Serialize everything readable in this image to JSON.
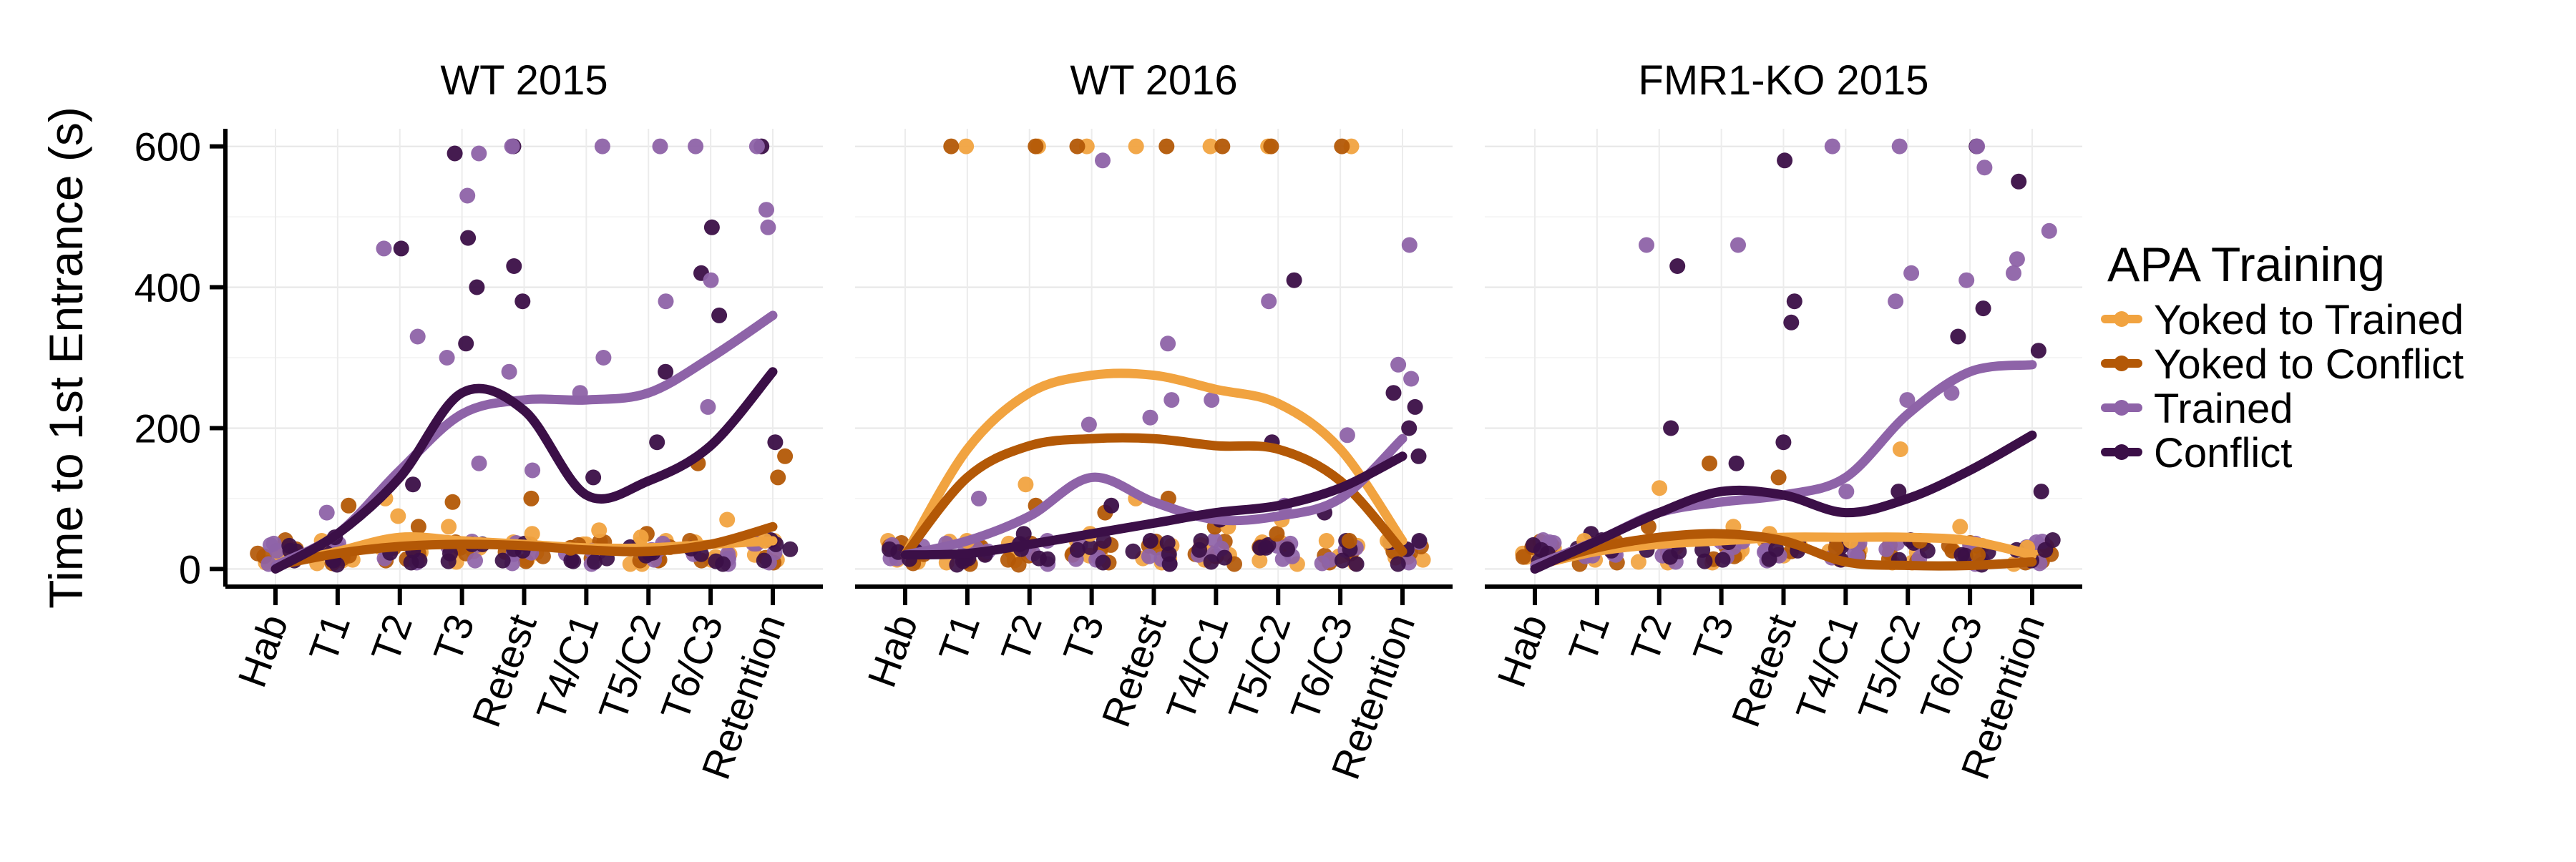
{
  "chart_data": {
    "type": "scatter",
    "ylabel": "Time to 1st Entrance (s)",
    "xlabel": "",
    "ylim": [
      -25,
      625
    ],
    "yticks": [
      0,
      200,
      400,
      600
    ],
    "categories": [
      "Hab",
      "T1",
      "T2",
      "T3",
      "Retest",
      "T4/C1",
      "T5/C2",
      "T6/C3",
      "Retention"
    ],
    "grid": true,
    "legend": {
      "title": "APA Training",
      "position": "right",
      "entries": [
        {
          "name": "Yoked to Trained",
          "color": "#f1a340"
        },
        {
          "name": "Yoked to Conflict",
          "color": "#b35806"
        },
        {
          "name": "Trained",
          "color": "#8e63a8"
        },
        {
          "name": "Conflict",
          "color": "#3b0f47"
        }
      ]
    },
    "facets": [
      {
        "title": "WT 2015",
        "series": [
          {
            "name": "Yoked to Trained",
            "trend": [
              5,
              25,
              45,
              40,
              35,
              30,
              30,
              35,
              40
            ]
          },
          {
            "name": "Yoked to Conflict",
            "trend": [
              5,
              22,
              32,
              35,
              33,
              27,
              25,
              35,
              60
            ]
          },
          {
            "name": "Trained",
            "trend": [
              5,
              50,
              140,
              220,
              240,
              240,
              250,
              300,
              360
            ]
          },
          {
            "name": "Conflict",
            "trend": [
              0,
              50,
              130,
              250,
              225,
              105,
              125,
              175,
              280
            ]
          }
        ],
        "points": [
          {
            "s": 3,
            "x": 3,
            "y": 590
          },
          {
            "s": 3,
            "x": 3,
            "y": 470
          },
          {
            "s": 3,
            "x": 3,
            "y": 400
          },
          {
            "s": 3,
            "x": 3,
            "y": 320
          },
          {
            "s": 3,
            "x": 4,
            "y": 600
          },
          {
            "s": 3,
            "x": 4,
            "y": 430
          },
          {
            "s": 3,
            "x": 4,
            "y": 380
          },
          {
            "s": 3,
            "x": 7,
            "y": 485
          },
          {
            "s": 3,
            "x": 7,
            "y": 420
          },
          {
            "s": 3,
            "x": 7,
            "y": 360
          },
          {
            "s": 3,
            "x": 8,
            "y": 600
          },
          {
            "s": 3,
            "x": 8,
            "y": 180
          },
          {
            "s": 3,
            "x": 6,
            "y": 280
          },
          {
            "s": 3,
            "x": 6,
            "y": 180
          },
          {
            "s": 3,
            "x": 2,
            "y": 455
          },
          {
            "s": 3,
            "x": 1,
            "y": 45
          },
          {
            "s": 3,
            "x": 2,
            "y": 120
          },
          {
            "s": 3,
            "x": 5,
            "y": 130
          },
          {
            "s": 2,
            "x": 2,
            "y": 455
          },
          {
            "s": 2,
            "x": 2,
            "y": 330
          },
          {
            "s": 2,
            "x": 3,
            "y": 590
          },
          {
            "s": 2,
            "x": 3,
            "y": 530
          },
          {
            "s": 2,
            "x": 3,
            "y": 300
          },
          {
            "s": 2,
            "x": 4,
            "y": 600
          },
          {
            "s": 2,
            "x": 4,
            "y": 280
          },
          {
            "s": 2,
            "x": 4,
            "y": 140
          },
          {
            "s": 2,
            "x": 5,
            "y": 600
          },
          {
            "s": 2,
            "x": 5,
            "y": 300
          },
          {
            "s": 2,
            "x": 5,
            "y": 250
          },
          {
            "s": 2,
            "x": 6,
            "y": 600
          },
          {
            "s": 2,
            "x": 6,
            "y": 380
          },
          {
            "s": 2,
            "x": 7,
            "y": 600
          },
          {
            "s": 2,
            "x": 7,
            "y": 410
          },
          {
            "s": 2,
            "x": 7,
            "y": 230
          },
          {
            "s": 2,
            "x": 8,
            "y": 600
          },
          {
            "s": 2,
            "x": 8,
            "y": 510
          },
          {
            "s": 2,
            "x": 8,
            "y": 485
          },
          {
            "s": 2,
            "x": 1,
            "y": 80
          },
          {
            "s": 2,
            "x": 3,
            "y": 150
          },
          {
            "s": 1,
            "x": 1,
            "y": 90
          },
          {
            "s": 1,
            "x": 2,
            "y": 60
          },
          {
            "s": 1,
            "x": 3,
            "y": 95
          },
          {
            "s": 1,
            "x": 4,
            "y": 100
          },
          {
            "s": 1,
            "x": 6,
            "y": 50
          },
          {
            "s": 1,
            "x": 7,
            "y": 150
          },
          {
            "s": 1,
            "x": 8,
            "y": 160
          },
          {
            "s": 1,
            "x": 8,
            "y": 130
          },
          {
            "s": 1,
            "x": 5,
            "y": 30
          },
          {
            "s": 0,
            "x": 2,
            "y": 100
          },
          {
            "s": 0,
            "x": 2,
            "y": 75
          },
          {
            "s": 0,
            "x": 1,
            "y": 40
          },
          {
            "s": 0,
            "x": 4,
            "y": 50
          },
          {
            "s": 0,
            "x": 5,
            "y": 55
          },
          {
            "s": 0,
            "x": 6,
            "y": 45
          },
          {
            "s": 0,
            "x": 7,
            "y": 70
          },
          {
            "s": 0,
            "x": 8,
            "y": 40
          },
          {
            "s": 0,
            "x": 3,
            "y": 60
          }
        ]
      },
      {
        "title": "WT 2016",
        "series": [
          {
            "name": "Yoked to Trained",
            "trend": [
              20,
              170,
              250,
              275,
              275,
              255,
              235,
              170,
              40
            ]
          },
          {
            "name": "Yoked to Conflict",
            "trend": [
              20,
              130,
              175,
              185,
              185,
              175,
              170,
              125,
              25
            ]
          },
          {
            "name": "Trained",
            "trend": [
              20,
              40,
              75,
              130,
              95,
              70,
              75,
              100,
              185
            ]
          },
          {
            "name": "Conflict",
            "trend": [
              20,
              22,
              35,
              50,
              65,
              80,
              90,
              115,
              160
            ]
          }
        ],
        "points": [
          {
            "s": 0,
            "x": 1,
            "y": 600
          },
          {
            "s": 0,
            "x": 2,
            "y": 600
          },
          {
            "s": 0,
            "x": 3,
            "y": 600
          },
          {
            "s": 0,
            "x": 4,
            "y": 600
          },
          {
            "s": 0,
            "x": 5,
            "y": 600
          },
          {
            "s": 0,
            "x": 6,
            "y": 600
          },
          {
            "s": 0,
            "x": 7,
            "y": 600
          },
          {
            "s": 1,
            "x": 1,
            "y": 600
          },
          {
            "s": 1,
            "x": 2,
            "y": 600
          },
          {
            "s": 1,
            "x": 3,
            "y": 600
          },
          {
            "s": 1,
            "x": 4,
            "y": 600
          },
          {
            "s": 1,
            "x": 5,
            "y": 600
          },
          {
            "s": 1,
            "x": 6,
            "y": 600
          },
          {
            "s": 1,
            "x": 7,
            "y": 600
          },
          {
            "s": 1,
            "x": 2,
            "y": 90
          },
          {
            "s": 1,
            "x": 3,
            "y": 80
          },
          {
            "s": 1,
            "x": 4,
            "y": 100
          },
          {
            "s": 1,
            "x": 5,
            "y": 60
          },
          {
            "s": 1,
            "x": 6,
            "y": 50
          },
          {
            "s": 1,
            "x": 7,
            "y": 40
          },
          {
            "s": 0,
            "x": 1,
            "y": 40
          },
          {
            "s": 0,
            "x": 2,
            "y": 120
          },
          {
            "s": 0,
            "x": 3,
            "y": 50
          },
          {
            "s": 0,
            "x": 4,
            "y": 100
          },
          {
            "s": 0,
            "x": 5,
            "y": 60
          },
          {
            "s": 0,
            "x": 6,
            "y": 70
          },
          {
            "s": 0,
            "x": 7,
            "y": 40
          },
          {
            "s": 0,
            "x": 8,
            "y": 40
          },
          {
            "s": 2,
            "x": 3,
            "y": 580
          },
          {
            "s": 2,
            "x": 4,
            "y": 320
          },
          {
            "s": 2,
            "x": 4,
            "y": 240
          },
          {
            "s": 2,
            "x": 4,
            "y": 215
          },
          {
            "s": 2,
            "x": 3,
            "y": 205
          },
          {
            "s": 2,
            "x": 5,
            "y": 240
          },
          {
            "s": 2,
            "x": 6,
            "y": 380
          },
          {
            "s": 2,
            "x": 7,
            "y": 190
          },
          {
            "s": 2,
            "x": 8,
            "y": 460
          },
          {
            "s": 2,
            "x": 8,
            "y": 290
          },
          {
            "s": 2,
            "x": 8,
            "y": 270
          },
          {
            "s": 2,
            "x": 2,
            "y": 40
          },
          {
            "s": 2,
            "x": 1,
            "y": 100
          },
          {
            "s": 2,
            "x": 6,
            "y": 90
          },
          {
            "s": 3,
            "x": 6,
            "y": 410
          },
          {
            "s": 3,
            "x": 6,
            "y": 180
          },
          {
            "s": 3,
            "x": 8,
            "y": 250
          },
          {
            "s": 3,
            "x": 8,
            "y": 230
          },
          {
            "s": 3,
            "x": 8,
            "y": 200
          },
          {
            "s": 3,
            "x": 8,
            "y": 160
          },
          {
            "s": 3,
            "x": 2,
            "y": 50
          },
          {
            "s": 3,
            "x": 3,
            "y": 90
          },
          {
            "s": 3,
            "x": 4,
            "y": 40
          },
          {
            "s": 3,
            "x": 5,
            "y": 70
          },
          {
            "s": 3,
            "x": 7,
            "y": 80
          },
          {
            "s": 3,
            "x": 1,
            "y": 20
          }
        ]
      },
      {
        "title": "FMR1-KO 2015",
        "series": [
          {
            "name": "Yoked to Trained",
            "trend": [
              5,
              25,
              35,
              40,
              45,
              45,
              45,
              40,
              20
            ]
          },
          {
            "name": "Yoked to Conflict",
            "trend": [
              5,
              30,
              45,
              50,
              40,
              10,
              5,
              5,
              10
            ]
          },
          {
            "name": "Trained",
            "trend": [
              5,
              40,
              80,
              95,
              105,
              130,
              220,
              280,
              290
            ]
          },
          {
            "name": "Conflict",
            "trend": [
              0,
              40,
              80,
              110,
              105,
              80,
              100,
              140,
              190
            ]
          }
        ],
        "points": [
          {
            "s": 3,
            "x": 2,
            "y": 430
          },
          {
            "s": 3,
            "x": 2,
            "y": 200
          },
          {
            "s": 3,
            "x": 4,
            "y": 580
          },
          {
            "s": 3,
            "x": 4,
            "y": 380
          },
          {
            "s": 3,
            "x": 4,
            "y": 350
          },
          {
            "s": 3,
            "x": 7,
            "y": 600
          },
          {
            "s": 3,
            "x": 7,
            "y": 370
          },
          {
            "s": 3,
            "x": 7,
            "y": 330
          },
          {
            "s": 3,
            "x": 8,
            "y": 550
          },
          {
            "s": 3,
            "x": 8,
            "y": 310
          },
          {
            "s": 3,
            "x": 8,
            "y": 110
          },
          {
            "s": 3,
            "x": 3,
            "y": 150
          },
          {
            "s": 3,
            "x": 4,
            "y": 180
          },
          {
            "s": 3,
            "x": 6,
            "y": 110
          },
          {
            "s": 3,
            "x": 1,
            "y": 50
          },
          {
            "s": 2,
            "x": 2,
            "y": 460
          },
          {
            "s": 2,
            "x": 3,
            "y": 460
          },
          {
            "s": 2,
            "x": 5,
            "y": 600
          },
          {
            "s": 2,
            "x": 6,
            "y": 600
          },
          {
            "s": 2,
            "x": 6,
            "y": 420
          },
          {
            "s": 2,
            "x": 6,
            "y": 380
          },
          {
            "s": 2,
            "x": 7,
            "y": 600
          },
          {
            "s": 2,
            "x": 7,
            "y": 570
          },
          {
            "s": 2,
            "x": 7,
            "y": 410
          },
          {
            "s": 2,
            "x": 8,
            "y": 480
          },
          {
            "s": 2,
            "x": 8,
            "y": 440
          },
          {
            "s": 2,
            "x": 8,
            "y": 420
          },
          {
            "s": 2,
            "x": 6,
            "y": 240
          },
          {
            "s": 2,
            "x": 7,
            "y": 250
          },
          {
            "s": 2,
            "x": 5,
            "y": 110
          },
          {
            "s": 0,
            "x": 2,
            "y": 115
          },
          {
            "s": 0,
            "x": 6,
            "y": 170
          },
          {
            "s": 0,
            "x": 1,
            "y": 40
          },
          {
            "s": 0,
            "x": 3,
            "y": 60
          },
          {
            "s": 0,
            "x": 4,
            "y": 50
          },
          {
            "s": 0,
            "x": 5,
            "y": 40
          },
          {
            "s": 0,
            "x": 7,
            "y": 60
          },
          {
            "s": 0,
            "x": 8,
            "y": 30
          },
          {
            "s": 1,
            "x": 3,
            "y": 150
          },
          {
            "s": 1,
            "x": 4,
            "y": 130
          },
          {
            "s": 1,
            "x": 5,
            "y": 30
          },
          {
            "s": 1,
            "x": 6,
            "y": 40
          },
          {
            "s": 1,
            "x": 7,
            "y": 20
          },
          {
            "s": 1,
            "x": 2,
            "y": 60
          }
        ]
      }
    ]
  }
}
